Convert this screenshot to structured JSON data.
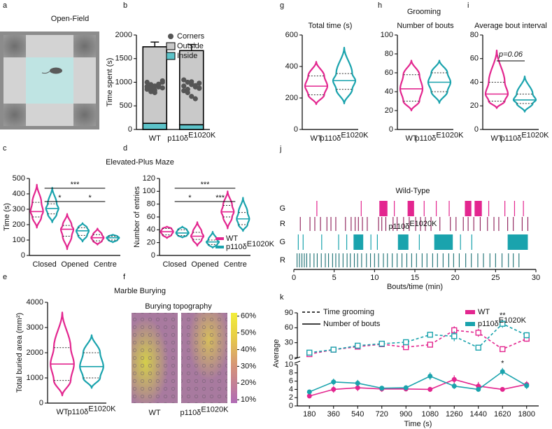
{
  "panel_letters": [
    "a",
    "b",
    "c",
    "d",
    "e",
    "f",
    "g",
    "h",
    "i",
    "j",
    "k"
  ],
  "section_titles": [
    "Open-Field",
    "Grooming",
    "Elevated-Plus Maze",
    "Marble Burying"
  ],
  "chart_data": [
    {
      "type": "stacked_bar",
      "ylabel": "Time spent (s)",
      "categories": [
        "WT",
        "p110δ"
      ],
      "category_sups": [
        null,
        "E1020K"
      ],
      "ylim": [
        0,
        2000
      ],
      "yticks": [
        0,
        500,
        1000,
        1500,
        2000
      ],
      "legend": "upper right",
      "series": [
        {
          "name": "Inside",
          "color": "#5cc3c9",
          "values": [
            130,
            100
          ],
          "errors": [
            80,
            40
          ]
        },
        {
          "name": "Outside",
          "color": "#c9c9c9",
          "values": [
            1620,
            1570
          ],
          "errors": [
            100,
            130
          ]
        }
      ],
      "points": {
        "name": "Corners",
        "color": "#555555",
        "values": [
          [
            1000,
            950,
            920,
            900,
            880,
            850,
            800,
            780,
            950,
            1000,
            900,
            870,
            830,
            960,
            1030,
            910
          ],
          [
            1050,
            1000,
            950,
            900,
            870,
            820,
            780,
            700,
            650,
            980,
            920,
            850,
            1010,
            930,
            880
          ]
        ]
      }
    },
    {
      "type": "violin",
      "title": "Total time (s)",
      "categories": [
        "WT",
        "p110δ"
      ],
      "category_sups": [
        null,
        "E1020K"
      ],
      "colors": [
        "#e3268f",
        "#1aa3ad"
      ],
      "ylim": [
        0,
        600
      ],
      "yticks": [
        0,
        200,
        400,
        600
      ],
      "values": [
        [
          160,
          220,
          275,
          340,
          430
        ],
        [
          165,
          255,
          310,
          355,
          520
        ]
      ]
    },
    {
      "type": "violin",
      "title": "Number of bouts",
      "categories": [
        "WT",
        "p110δ"
      ],
      "category_sups": [
        null,
        "E1020K"
      ],
      "colors": [
        "#e3268f",
        "#1aa3ad"
      ],
      "ylim": [
        0,
        100
      ],
      "yticks": [
        0,
        20,
        40,
        60,
        80,
        100
      ],
      "values": [
        [
          20,
          30,
          43,
          58,
          73
        ],
        [
          28,
          40,
          50,
          60,
          73
        ]
      ]
    },
    {
      "type": "violin",
      "title": "Average bout interval",
      "categories": [
        "WT",
        "p110δ"
      ],
      "category_sups": [
        null,
        "E1020K"
      ],
      "colors": [
        "#e3268f",
        "#1aa3ad"
      ],
      "ylim": [
        0,
        80
      ],
      "yticks": [
        0,
        20,
        40,
        60,
        80
      ],
      "values": [
        [
          18,
          24,
          30,
          40,
          67
        ],
        [
          15,
          22,
          25,
          30,
          45
        ]
      ],
      "annotation": "p=0.06"
    },
    {
      "type": "grouped_violin",
      "ylabel": "Time (s)",
      "categories": [
        "Closed",
        "Opened",
        "Centre"
      ],
      "ylim": [
        0,
        500
      ],
      "yticks": [
        0,
        100,
        200,
        300,
        400,
        500
      ],
      "series": [
        {
          "name": "WT",
          "sup": null,
          "color": "#e3268f",
          "values": [
            [
              180,
              250,
              285,
              345,
              460
            ],
            [
              40,
              125,
              170,
              195,
              270
            ],
            [
              70,
              95,
              115,
              135,
              175
            ]
          ]
        },
        {
          "name": "p110δ",
          "sup": "E1020K",
          "color": "#1aa3ad",
          "values": [
            [
              215,
              270,
              305,
              335,
              440
            ],
            [
              90,
              130,
              160,
              180,
              210
            ],
            [
              85,
              100,
              115,
              125,
              135
            ]
          ]
        }
      ],
      "significance": [
        {
          "text": "***",
          "between": [
            "Closed",
            "Centre"
          ]
        },
        {
          "text": "*",
          "between": [
            "Closed",
            "Opened"
          ]
        },
        {
          "text": "*",
          "between": [
            "Opened",
            "Centre"
          ]
        }
      ]
    },
    {
      "type": "grouped_violin",
      "ylabel": "Number of entries",
      "categories": [
        "Closed",
        "Opened",
        "Centre"
      ],
      "ylim": [
        0,
        120
      ],
      "yticks": [
        0,
        20,
        40,
        60,
        80,
        100,
        120
      ],
      "legend": "lower right",
      "series": [
        {
          "name": "WT",
          "sup": null,
          "color": "#e3268f",
          "values": [
            [
              27,
              32,
              37,
              42,
              45
            ],
            [
              15,
              25,
              30,
              36,
              52
            ],
            [
              42,
              60,
              68,
              78,
              100
            ]
          ]
        },
        {
          "name": "p110δ",
          "sup": "E1020K",
          "color": "#1aa3ad",
          "values": [
            [
              28,
              31,
              35,
              40,
              45
            ],
            [
              12,
              17,
              21,
              24,
              37
            ],
            [
              38,
              48,
              57,
              67,
              90
            ]
          ]
        }
      ],
      "significance": [
        {
          "text": "***",
          "between": [
            "Closed",
            "Centre"
          ]
        },
        {
          "text": "*",
          "between": [
            "Closed",
            "Opened"
          ]
        },
        {
          "text": "***",
          "between": [
            "Opened",
            "Centre"
          ]
        }
      ]
    },
    {
      "type": "violin",
      "ylabel": "Total buried area (mm²)",
      "categories": [
        "WT",
        "p110δ"
      ],
      "category_sups": [
        null,
        "E1020K"
      ],
      "colors": [
        "#e3268f",
        "#1aa3ad"
      ],
      "ylim": [
        0,
        4000
      ],
      "yticks": [
        0,
        1000,
        2000,
        3000,
        4000
      ],
      "values": [
        [
          300,
          900,
          1550,
          2200,
          3600
        ],
        [
          600,
          1000,
          1450,
          2000,
          2700
        ]
      ]
    },
    {
      "type": "heatmap",
      "title": "Burying topography",
      "categories": [
        "WT",
        "p110δ"
      ],
      "category_sups": [
        null,
        "E1020K"
      ],
      "clim": [
        8,
        62
      ],
      "cticks": [
        {
          "value": 10,
          "label": "10%"
        },
        {
          "value": 20,
          "label": "20%"
        },
        {
          "value": 30,
          "label": "30%"
        },
        {
          "value": 40,
          "label": "40%"
        },
        {
          "value": 50,
          "label": "50%"
        },
        {
          "value": 60,
          "label": "60%"
        }
      ]
    },
    {
      "type": "raster",
      "xlabel": "Bouts/time (min)",
      "xlim": [
        0,
        30
      ],
      "xticks": [
        0,
        5,
        10,
        15,
        20,
        25,
        30
      ],
      "groups": [
        {
          "name": "Wild-Type",
          "sup": null,
          "rows": [
            {
              "name": "G",
              "color": "#e3268f",
              "bouts": [
                [
                  2.8,
                  2.85
                ],
                [
                  8.3,
                  8.35
                ],
                [
                  10.6,
                  11.6
                ],
                [
                  12.4,
                  12.5
                ],
                [
                  14.1,
                  14.9
                ],
                [
                  16.1,
                  16.2
                ],
                [
                  17.6,
                  17.7
                ],
                [
                  19.2,
                  19.3
                ],
                [
                  21.2,
                  22.0
                ],
                [
                  22.4,
                  23.3
                ],
                [
                  24.1,
                  24.15
                ],
                [
                  26.1,
                  26.2
                ],
                [
                  27.3,
                  27.35
                ],
                [
                  28.4,
                  28.45
                ]
              ]
            },
            {
              "name": "R",
              "color": "#8b1a55",
              "events": [
                0.8,
                2.0,
                2.6,
                3.3,
                4.1,
                4.6,
                5.2,
                6.4,
                7.1,
                7.6,
                8.0,
                8.5,
                9.1,
                10.5,
                10.9,
                11.4,
                12.3,
                12.8,
                13.6,
                14.3,
                15.1,
                15.7,
                16.3,
                17.0,
                18.1,
                19.4,
                20.1,
                21.0,
                21.6,
                22.3,
                23.1,
                24.0,
                24.8,
                25.4,
                26.5,
                27.2,
                28.3,
                29.0
              ]
            }
          ]
        },
        {
          "name": "p110δ",
          "sup": "E1020K",
          "rows": [
            {
              "name": "G",
              "color": "#1aa3ad",
              "bouts": [
                [
                  0.5,
                  0.6
                ],
                [
                  1.1,
                  1.2
                ],
                [
                  3.4,
                  3.45
                ],
                [
                  5.5,
                  5.55
                ],
                [
                  6.5,
                  6.6
                ],
                [
                  7.4,
                  8.6
                ],
                [
                  9.5,
                  9.6
                ],
                [
                  10.3,
                  10.4
                ],
                [
                  12.9,
                  14.2
                ],
                [
                  15.5,
                  15.6
                ],
                [
                  17.4,
                  19.7
                ],
                [
                  20.6,
                  20.7
                ],
                [
                  22.0,
                  22.1
                ],
                [
                  26.5,
                  29.0
                ]
              ]
            },
            {
              "name": "R",
              "color": "#1a6f72",
              "events": [
                0.4,
                0.7,
                1.0,
                1.3,
                1.6,
                2.0,
                2.5,
                2.9,
                3.4,
                3.9,
                4.3,
                4.8,
                5.2,
                5.6,
                6.1,
                6.6,
                7.0,
                7.5,
                7.9,
                8.4,
                9.0,
                9.5,
                10.0,
                10.5,
                11.1,
                11.6,
                12.2,
                12.8,
                13.4,
                14.0,
                14.6,
                15.2,
                15.9,
                16.5,
                17.2,
                17.8,
                18.5,
                19.2,
                19.8,
                20.5,
                21.3,
                22.0,
                22.8,
                23.5,
                24.3,
                25.0,
                25.8,
                26.6,
                27.2,
                27.9
              ]
            }
          ]
        }
      ]
    },
    {
      "type": "broken_line",
      "xlabel": "Time (s)",
      "ylabel": "Average",
      "x": [
        180,
        360,
        540,
        720,
        900,
        1080,
        1260,
        1440,
        1620,
        1800
      ],
      "xlim": [
        90,
        1890
      ],
      "xticks": [
        180,
        360,
        540,
        720,
        900,
        1080,
        1260,
        1440,
        1620,
        1800
      ],
      "top": {
        "ylim": [
          0,
          90
        ],
        "yticks": [
          0,
          30,
          60,
          90
        ],
        "dash": true,
        "series": [
          {
            "color": "#e3268f",
            "marker": "square",
            "values": [
              7,
              16,
              22,
              27,
              21,
              26,
              55,
              50,
              17,
              38
            ],
            "errors": [
              3,
              3,
              2,
              3,
              3,
              3,
              8,
              8,
              2,
              6
            ]
          },
          {
            "color": "#1aa3ad",
            "marker": "square",
            "values": [
              10,
              16,
              24,
              28,
              31,
              46,
              43,
              20,
              68,
              45
            ],
            "errors": [
              3,
              4,
              3,
              3,
              4,
              5,
              10,
              5,
              8,
              6
            ]
          }
        ]
      },
      "bottom": {
        "ylim": [
          0,
          10
        ],
        "yticks": [
          0,
          2,
          4,
          6,
          8,
          10
        ],
        "dash": false,
        "series": [
          {
            "color": "#e3268f",
            "marker": "circle",
            "values": [
              2.4,
              4.0,
              4.4,
              4.1,
              4.1,
              4.0,
              6.4,
              4.8,
              4.0,
              5.2
            ],
            "errors": [
              0.4,
              0.8,
              0.8,
              0.7,
              0.6,
              0.6,
              1.0,
              1.0,
              0.5,
              0.8
            ]
          },
          {
            "color": "#1aa3ad",
            "marker": "circle",
            "values": [
              3.4,
              5.8,
              5.5,
              4.3,
              4.4,
              7.2,
              4.8,
              4.0,
              8.3,
              4.9
            ],
            "errors": [
              0.5,
              0.8,
              0.8,
              0.5,
              0.6,
              0.9,
              0.7,
              0.5,
              0.9,
              0.8
            ]
          }
        ]
      },
      "style_legend": [
        {
          "name": "Time grooming",
          "dash": true
        },
        {
          "name": "Number of bouts",
          "dash": false
        }
      ],
      "legend": [
        {
          "name": "WT",
          "sup": null,
          "color": "#e3268f"
        },
        {
          "name": "p110δ",
          "sup": "E1020K",
          "color": "#1aa3ad"
        }
      ],
      "annotations": [
        {
          "text": "**",
          "x": 1620,
          "panel": "top"
        },
        {
          "text": "*",
          "x": 1620,
          "panel": "bottom"
        }
      ]
    }
  ]
}
